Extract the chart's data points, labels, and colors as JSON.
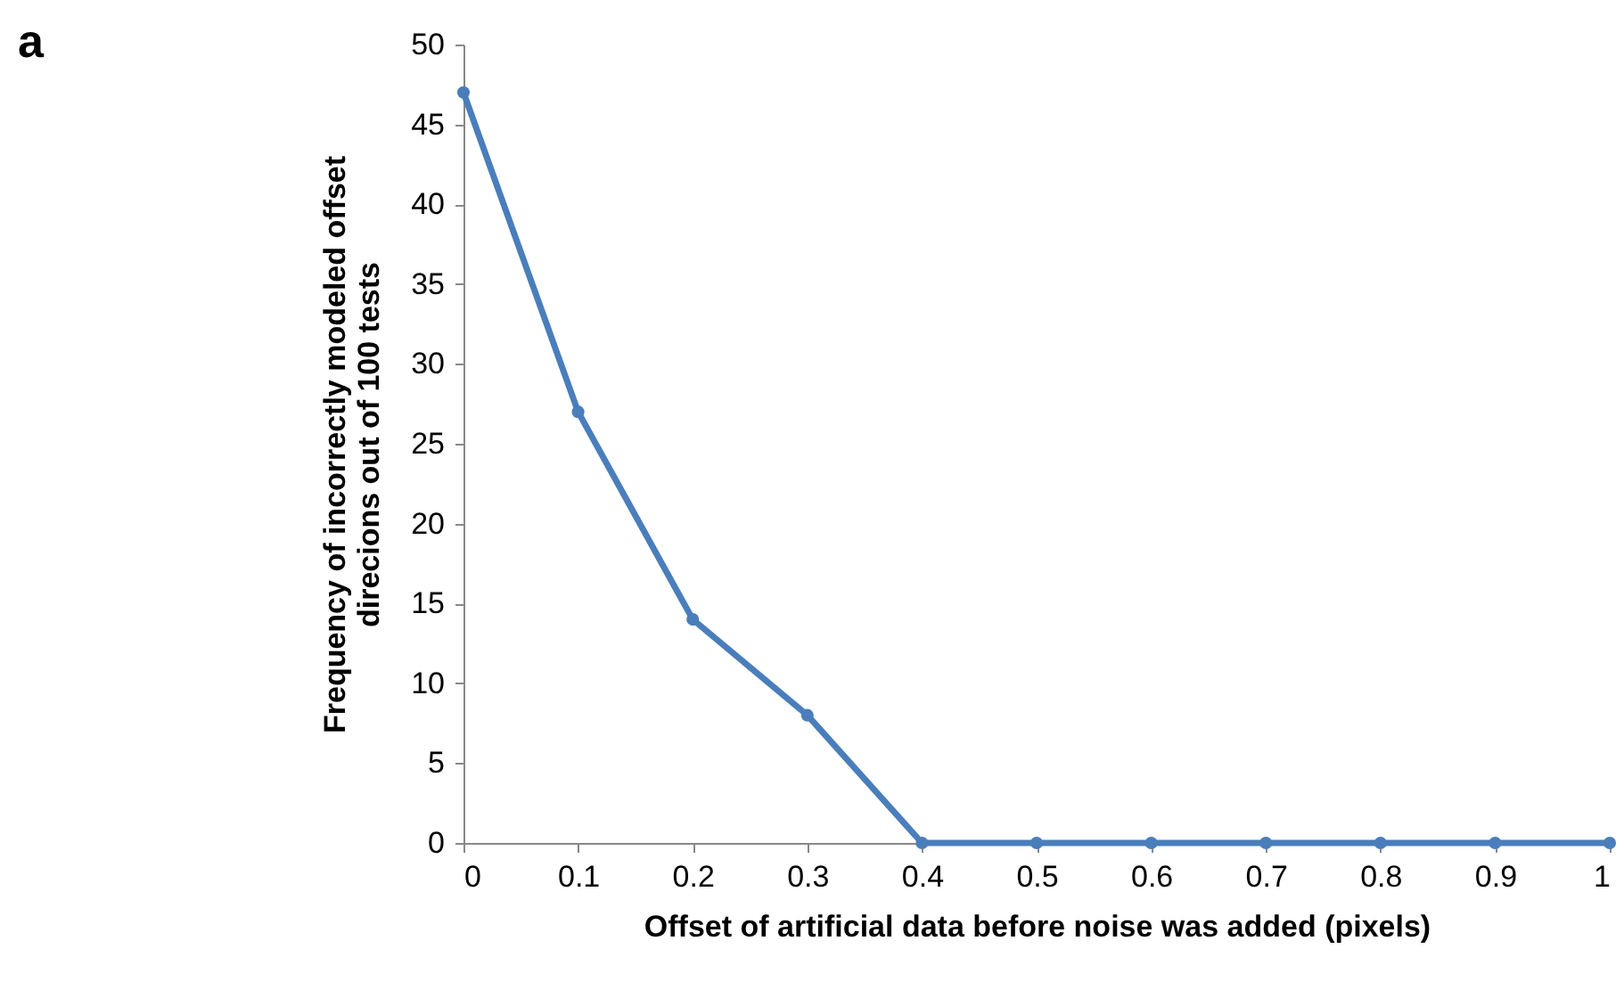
{
  "chart_data": {
    "type": "line",
    "xlabel": "Offset of artificial data before noise was added (pixels)",
    "ylabel": "Frequency of incorrectly modeled offset\ndirecions out of 100 tests",
    "annotations": [
      "a"
    ],
    "x": [
      0,
      0.1,
      0.2,
      0.3,
      0.4,
      0.5,
      0.6,
      0.7,
      0.8,
      0.9,
      1
    ],
    "series": [
      {
        "color": "#4a7ebb",
        "values": [
          47,
          27,
          14,
          8,
          0,
          0,
          0,
          0,
          0,
          0,
          0
        ]
      }
    ],
    "xlim": [
      0,
      1
    ],
    "xticks": [
      0,
      0.1,
      0.2,
      0.3,
      0.4,
      0.5,
      0.6,
      0.7,
      0.8,
      0.9,
      1
    ],
    "ylim": [
      0,
      50
    ],
    "yticks": [
      0,
      5,
      10,
      15,
      20,
      25,
      30,
      35,
      40,
      45,
      50
    ],
    "grid": false,
    "legend": false,
    "marker": "circle",
    "line_style": "solid"
  }
}
